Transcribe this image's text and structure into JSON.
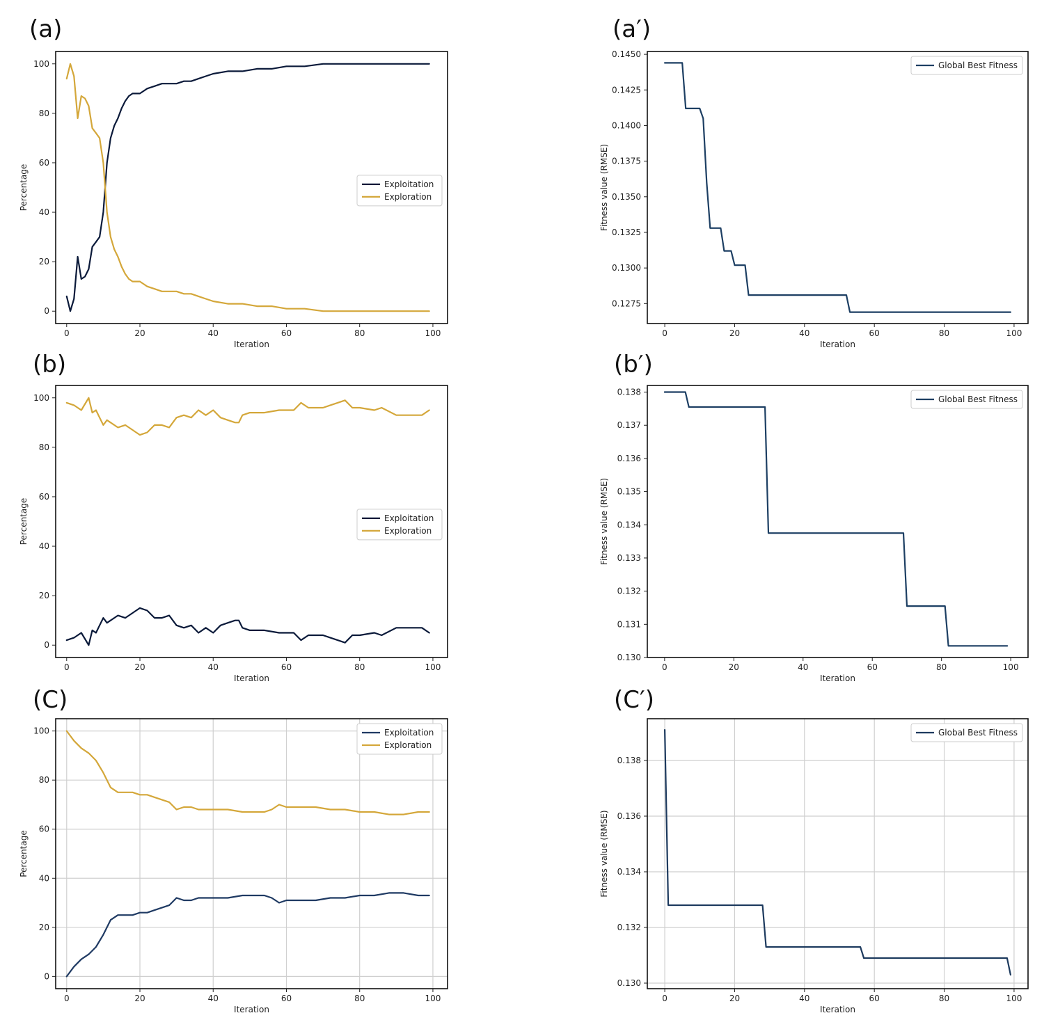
{
  "chart_data": [
    {
      "panel_label": "(a)",
      "type": "line",
      "xlabel": "Iteration",
      "ylabel": "Percentage",
      "xlim": [
        -3,
        104
      ],
      "ylim": [
        -5,
        105
      ],
      "xticks": [
        0,
        20,
        40,
        60,
        80,
        100
      ],
      "yticks": [
        0,
        20,
        40,
        60,
        80,
        100
      ],
      "grid": false,
      "legend": "center-right",
      "series": [
        {
          "name": "Exploitation",
          "color": "#0b1a3a",
          "x": [
            0,
            1,
            2,
            3,
            4,
            5,
            6,
            7,
            8,
            9,
            10,
            11,
            12,
            13,
            14,
            15,
            16,
            17,
            18,
            19,
            20,
            22,
            24,
            26,
            28,
            30,
            32,
            34,
            36,
            38,
            40,
            44,
            48,
            52,
            56,
            60,
            65,
            70,
            75,
            80,
            85,
            90,
            95,
            99
          ],
          "y": [
            6,
            0,
            5,
            22,
            13,
            14,
            17,
            26,
            28,
            30,
            40,
            60,
            70,
            75,
            78,
            82,
            85,
            87,
            88,
            88,
            88,
            90,
            91,
            92,
            92,
            92,
            93,
            93,
            94,
            95,
            96,
            97,
            97,
            98,
            98,
            99,
            99,
            100,
            100,
            100,
            100,
            100,
            100,
            100
          ]
        },
        {
          "name": "Exploration",
          "color": "#d4a73a",
          "x": [
            0,
            1,
            2,
            3,
            4,
            5,
            6,
            7,
            8,
            9,
            10,
            11,
            12,
            13,
            14,
            15,
            16,
            17,
            18,
            19,
            20,
            22,
            24,
            26,
            28,
            30,
            32,
            34,
            36,
            38,
            40,
            44,
            48,
            52,
            56,
            60,
            65,
            70,
            75,
            80,
            85,
            90,
            95,
            99
          ],
          "y": [
            94,
            100,
            95,
            78,
            87,
            86,
            83,
            74,
            72,
            70,
            60,
            40,
            30,
            25,
            22,
            18,
            15,
            13,
            12,
            12,
            12,
            10,
            9,
            8,
            8,
            8,
            7,
            7,
            6,
            5,
            4,
            3,
            3,
            2,
            2,
            1,
            1,
            0,
            0,
            0,
            0,
            0,
            0,
            0
          ]
        }
      ]
    },
    {
      "panel_label": "(a′)",
      "type": "line",
      "xlabel": "Iteration",
      "ylabel": "Fitness value (RMSE)",
      "xlim": [
        -5,
        104
      ],
      "ylim": [
        0.1261,
        0.1452
      ],
      "xticks": [
        0,
        20,
        40,
        60,
        80,
        100
      ],
      "yticks": [
        0.1275,
        0.13,
        0.1325,
        0.135,
        0.1375,
        0.14,
        0.1425,
        0.145
      ],
      "ytick_labels": [
        "0.1275",
        "0.1300",
        "0.1325",
        "0.1350",
        "0.1375",
        "0.1400",
        "0.1425",
        "0.1450"
      ],
      "grid": false,
      "legend": "top-right",
      "series": [
        {
          "name": "Global Best Fitness",
          "color": "#1d3f63",
          "x": [
            0,
            5,
            6,
            10,
            11,
            12,
            13,
            16,
            17,
            19,
            20,
            23,
            24,
            52,
            53,
            99
          ],
          "y": [
            0.1444,
            0.1444,
            0.1412,
            0.1412,
            0.1405,
            0.136,
            0.1328,
            0.1328,
            0.1312,
            0.1312,
            0.1302,
            0.1302,
            0.1281,
            0.1281,
            0.1269,
            0.1269
          ]
        }
      ]
    },
    {
      "panel_label": "(b)",
      "type": "line",
      "xlabel": "Iteration",
      "ylabel": "Percentage",
      "xlim": [
        -3,
        104
      ],
      "ylim": [
        -5,
        105
      ],
      "xticks": [
        0,
        20,
        40,
        60,
        80,
        100
      ],
      "yticks": [
        0,
        20,
        40,
        60,
        80,
        100
      ],
      "grid": false,
      "legend": "center-right",
      "series": [
        {
          "name": "Exploitation",
          "color": "#0b1a3a",
          "x": [
            0,
            2,
            4,
            6,
            7,
            8,
            9,
            10,
            11,
            12,
            14,
            16,
            18,
            20,
            22,
            24,
            26,
            28,
            30,
            32,
            34,
            36,
            38,
            40,
            42,
            44,
            46,
            47,
            48,
            50,
            54,
            58,
            62,
            64,
            66,
            70,
            72,
            74,
            76,
            78,
            80,
            84,
            86,
            90,
            94,
            97,
            99
          ],
          "y": [
            2,
            3,
            5,
            0,
            6,
            5,
            8,
            11,
            9,
            10,
            12,
            11,
            13,
            15,
            14,
            11,
            11,
            12,
            8,
            7,
            8,
            5,
            7,
            5,
            8,
            9,
            10,
            10,
            7,
            6,
            6,
            5,
            5,
            2,
            4,
            4,
            3,
            2,
            1,
            4,
            4,
            5,
            4,
            7,
            7,
            7,
            5
          ]
        },
        {
          "name": "Exploration",
          "color": "#d4a73a",
          "x": [
            0,
            2,
            4,
            6,
            7,
            8,
            9,
            10,
            11,
            12,
            14,
            16,
            18,
            20,
            22,
            24,
            26,
            28,
            30,
            32,
            34,
            36,
            38,
            40,
            42,
            44,
            46,
            47,
            48,
            50,
            54,
            58,
            62,
            64,
            66,
            70,
            72,
            74,
            76,
            78,
            80,
            84,
            86,
            90,
            94,
            97,
            99
          ],
          "y": [
            98,
            97,
            95,
            100,
            94,
            95,
            92,
            89,
            91,
            90,
            88,
            89,
            87,
            85,
            86,
            89,
            89,
            88,
            92,
            93,
            92,
            95,
            93,
            95,
            92,
            91,
            90,
            90,
            93,
            94,
            94,
            95,
            95,
            98,
            96,
            96,
            97,
            98,
            99,
            96,
            96,
            95,
            96,
            93,
            93,
            93,
            95
          ]
        }
      ]
    },
    {
      "panel_label": "(b′)",
      "type": "line",
      "xlabel": "Iteration",
      "ylabel": "Fitness value (RMSE)",
      "xlim": [
        -5,
        105
      ],
      "ylim": [
        0.13,
        0.1382
      ],
      "xticks": [
        0,
        20,
        40,
        60,
        80,
        100
      ],
      "yticks": [
        0.13,
        0.131,
        0.132,
        0.133,
        0.134,
        0.135,
        0.136,
        0.137,
        0.138
      ],
      "ytick_labels": [
        "0.130",
        "0.131",
        "0.132",
        "0.133",
        "0.134",
        "0.135",
        "0.136",
        "0.137",
        "0.138"
      ],
      "grid": false,
      "legend": "top-right",
      "series": [
        {
          "name": "Global Best Fitness",
          "color": "#1d3f63",
          "x": [
            0,
            6,
            7,
            29,
            30,
            69,
            70,
            81,
            82,
            99
          ],
          "y": [
            0.138,
            0.138,
            0.13755,
            0.13755,
            0.13375,
            0.13375,
            0.13155,
            0.13155,
            0.13035,
            0.13035
          ]
        }
      ]
    },
    {
      "panel_label": "(C)",
      "type": "line",
      "xlabel": "Iteration",
      "ylabel": "Percentage",
      "xlim": [
        -3,
        104
      ],
      "ylim": [
        -5,
        105
      ],
      "xticks": [
        0,
        20,
        40,
        60,
        80,
        100
      ],
      "yticks": [
        0,
        20,
        40,
        60,
        80,
        100
      ],
      "grid": true,
      "legend": "top-right",
      "series": [
        {
          "name": "Exploitation",
          "color": "#1f3a63",
          "x": [
            0,
            2,
            4,
            6,
            8,
            10,
            12,
            14,
            16,
            18,
            20,
            22,
            24,
            26,
            28,
            30,
            32,
            34,
            36,
            38,
            40,
            44,
            48,
            52,
            54,
            56,
            58,
            60,
            64,
            68,
            72,
            76,
            80,
            84,
            88,
            92,
            96,
            99
          ],
          "y": [
            0,
            4,
            7,
            9,
            12,
            17,
            23,
            25,
            25,
            25,
            26,
            26,
            27,
            28,
            29,
            32,
            31,
            31,
            32,
            32,
            32,
            32,
            33,
            33,
            33,
            32,
            30,
            31,
            31,
            31,
            32,
            32,
            33,
            33,
            34,
            34,
            33,
            33
          ]
        },
        {
          "name": "Exploration",
          "color": "#d4a73a",
          "x": [
            0,
            2,
            4,
            6,
            8,
            10,
            12,
            14,
            16,
            18,
            20,
            22,
            24,
            26,
            28,
            30,
            32,
            34,
            36,
            38,
            40,
            44,
            48,
            52,
            54,
            56,
            58,
            60,
            64,
            68,
            72,
            76,
            80,
            84,
            88,
            92,
            96,
            99
          ],
          "y": [
            100,
            96,
            93,
            91,
            88,
            83,
            77,
            75,
            75,
            75,
            74,
            74,
            73,
            72,
            71,
            68,
            69,
            69,
            68,
            68,
            68,
            68,
            67,
            67,
            67,
            68,
            70,
            69,
            69,
            69,
            68,
            68,
            67,
            67,
            66,
            66,
            67,
            67
          ]
        }
      ]
    },
    {
      "panel_label": "(C′)",
      "type": "line",
      "xlabel": "Iteration",
      "ylabel": "Fitness value (RMSE)",
      "xlim": [
        -5,
        104
      ],
      "ylim": [
        0.1298,
        0.1395
      ],
      "xticks": [
        0,
        20,
        40,
        60,
        80,
        100
      ],
      "yticks": [
        0.13,
        0.132,
        0.134,
        0.136,
        0.138
      ],
      "ytick_labels": [
        "0.130",
        "0.132",
        "0.134",
        "0.136",
        "0.138"
      ],
      "grid": true,
      "legend": "top-right",
      "series": [
        {
          "name": "Global Best Fitness",
          "color": "#1d3a5e",
          "x": [
            0,
            1,
            28,
            29,
            56,
            57,
            98,
            99
          ],
          "y": [
            0.1391,
            0.1328,
            0.1328,
            0.1313,
            0.1313,
            0.1309,
            0.1309,
            0.1303
          ]
        }
      ]
    }
  ]
}
